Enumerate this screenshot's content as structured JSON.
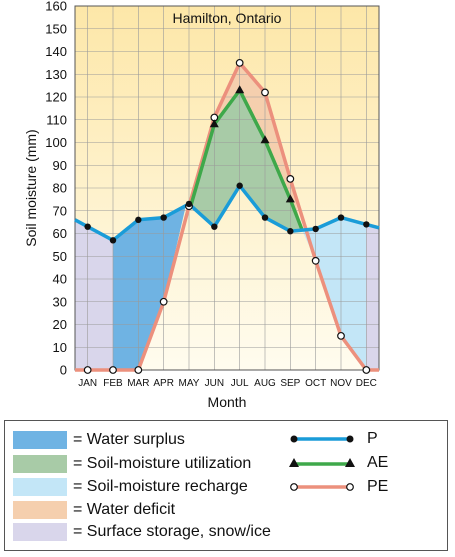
{
  "chart_data": {
    "type": "line",
    "title": "Hamilton, Ontario",
    "xlabel": "Month",
    "ylabel": "Soil moisture (mm)",
    "ylim": [
      0,
      160
    ],
    "yticks": [
      0,
      10,
      20,
      30,
      40,
      50,
      60,
      70,
      80,
      90,
      100,
      110,
      120,
      130,
      140,
      150,
      160
    ],
    "grid": true,
    "categories": [
      "JAN",
      "FEB",
      "MAR",
      "APR",
      "MAY",
      "JUN",
      "JUL",
      "AUG",
      "SEP",
      "OCT",
      "NOV",
      "DEC"
    ],
    "series": [
      {
        "name": "P",
        "values": [
          63,
          57,
          66,
          67,
          73,
          63,
          81,
          67,
          61,
          62,
          67,
          64
        ]
      },
      {
        "name": "AE",
        "values": [
          0,
          0,
          0,
          30,
          72,
          108,
          123,
          101,
          75,
          48,
          15,
          0
        ]
      },
      {
        "name": "PE",
        "values": [
          0,
          0,
          0,
          30,
          72,
          111,
          135,
          122,
          84,
          48,
          15,
          0
        ]
      }
    ]
  },
  "legend": {
    "areas": [
      {
        "label": "= Water surplus",
        "color": "#6fb3e3"
      },
      {
        "label": "= Soil-moisture utilization",
        "color": "#a8cba7"
      },
      {
        "label": "= Soil-moisture recharge",
        "color": "#c3e6f7"
      },
      {
        "label": "= Water deficit",
        "color": "#f5cfae"
      },
      {
        "label": "= Surface storage, snow/ice",
        "color": "#d9d6eb"
      }
    ],
    "lines": [
      {
        "label": "P",
        "color": "#1a9cd8",
        "marker": "dot"
      },
      {
        "label": "AE",
        "color": "#3ea84a",
        "marker": "triangle"
      },
      {
        "label": "PE",
        "color": "#ec907d",
        "marker": "open-circle"
      }
    ]
  }
}
